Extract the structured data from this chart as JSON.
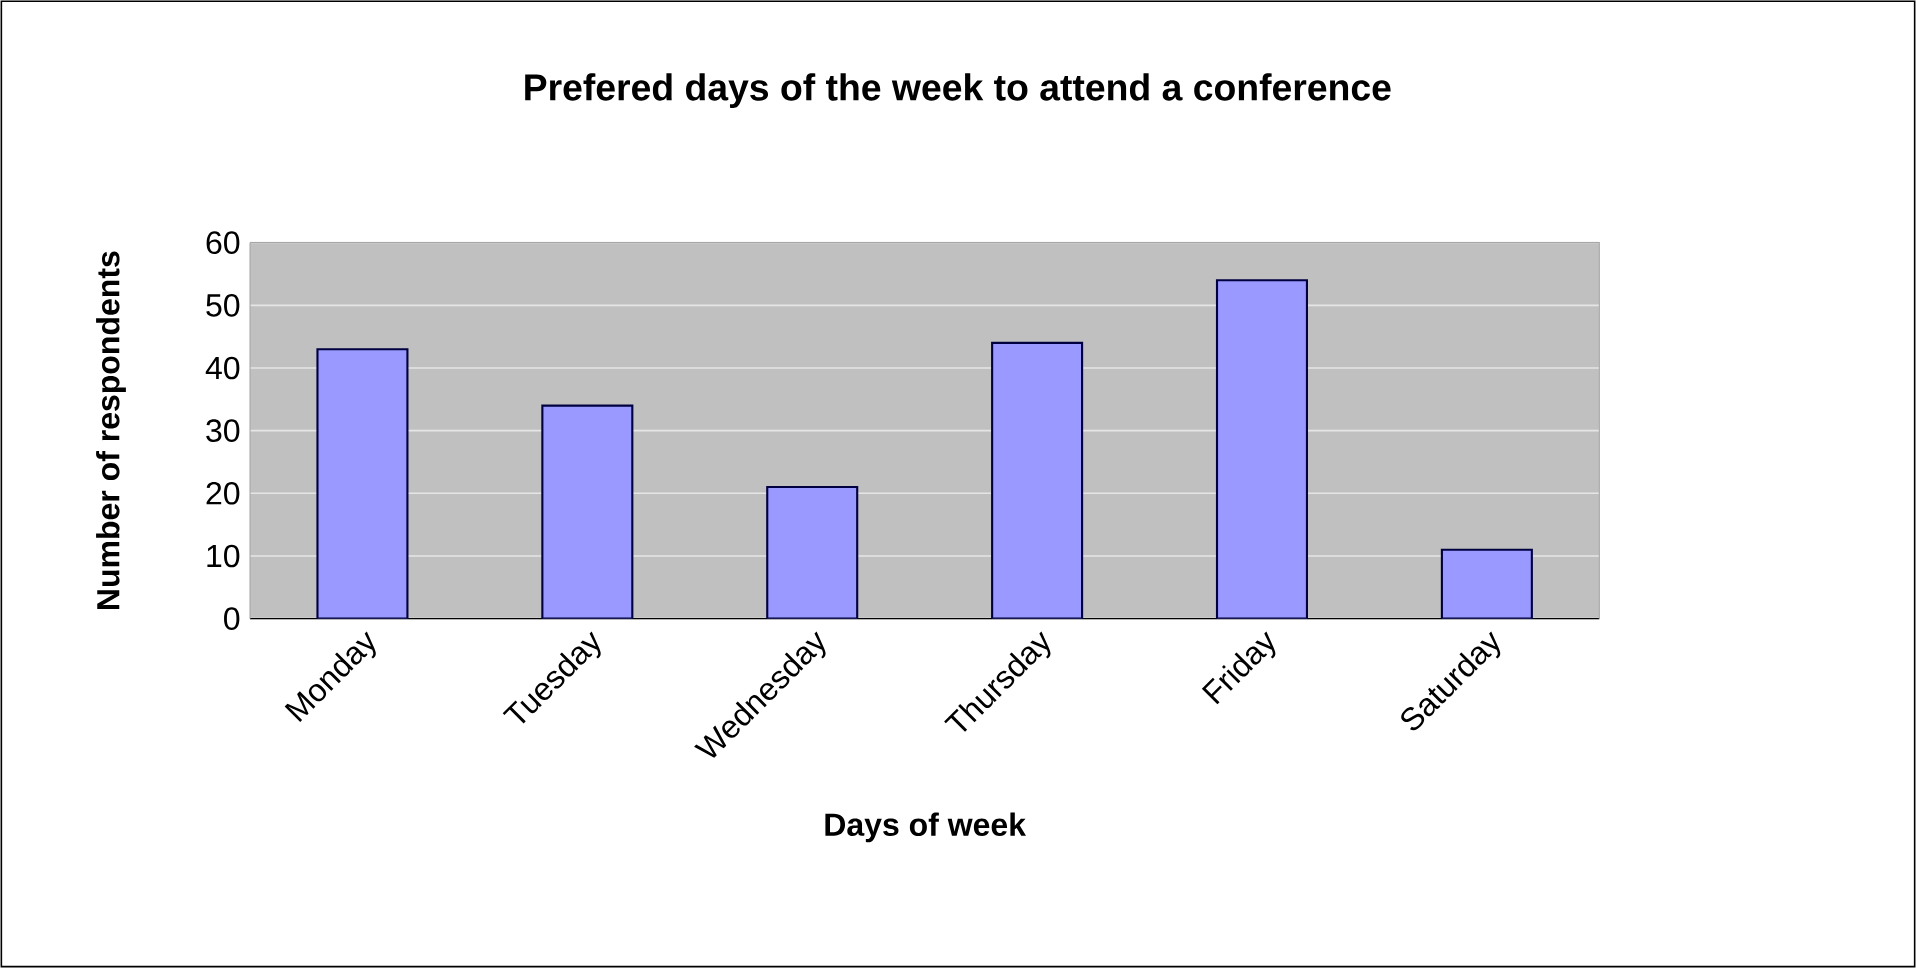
{
  "chart_data": {
    "type": "bar",
    "title": "Prefered days of the week to attend a conference",
    "xlabel": "Days of week",
    "ylabel": "Number of respondents",
    "categories": [
      "Monday",
      "Tuesday",
      "Wednesday",
      "Thursday",
      "Friday",
      "Saturday"
    ],
    "values": [
      43,
      34,
      21,
      44,
      54,
      11
    ],
    "color": "#9999ff",
    "ylim": [
      0,
      60
    ],
    "yticks": [
      0,
      10,
      20,
      30,
      40,
      50,
      60
    ],
    "grid": "y"
  }
}
